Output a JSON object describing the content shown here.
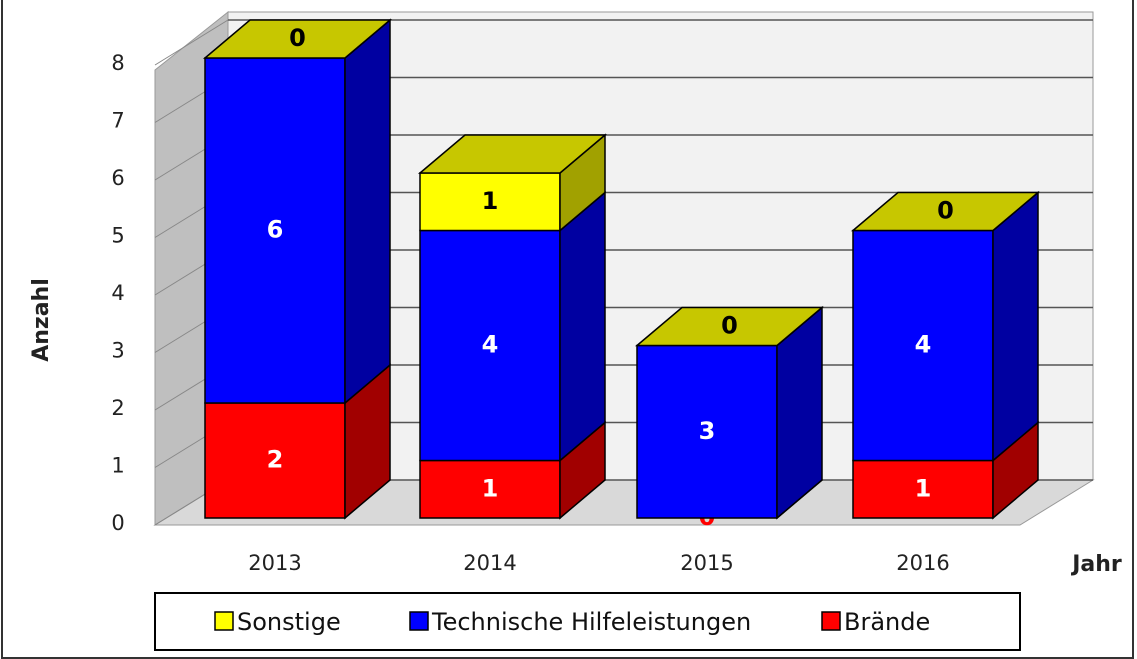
{
  "chart_data": {
    "type": "bar3d_stacked",
    "categories": [
      "2013",
      "2014",
      "2015",
      "2016"
    ],
    "series": [
      {
        "name": "Brände",
        "color": "#ff0000",
        "values": [
          2,
          1,
          0,
          1
        ]
      },
      {
        "name": "Technische Hilfeleistungen",
        "color": "#0000ff",
        "values": [
          6,
          4,
          3,
          4
        ]
      },
      {
        "name": "Sonstige",
        "color": "#ffff00",
        "values": [
          0,
          1,
          0,
          0
        ]
      }
    ],
    "ylim": [
      0,
      8
    ],
    "yticks": [
      0,
      1,
      2,
      3,
      4,
      5,
      6,
      7,
      8
    ],
    "grid": true,
    "y_label": "Anzahl",
    "x_label": "Jahr",
    "legend": "bottom"
  }
}
